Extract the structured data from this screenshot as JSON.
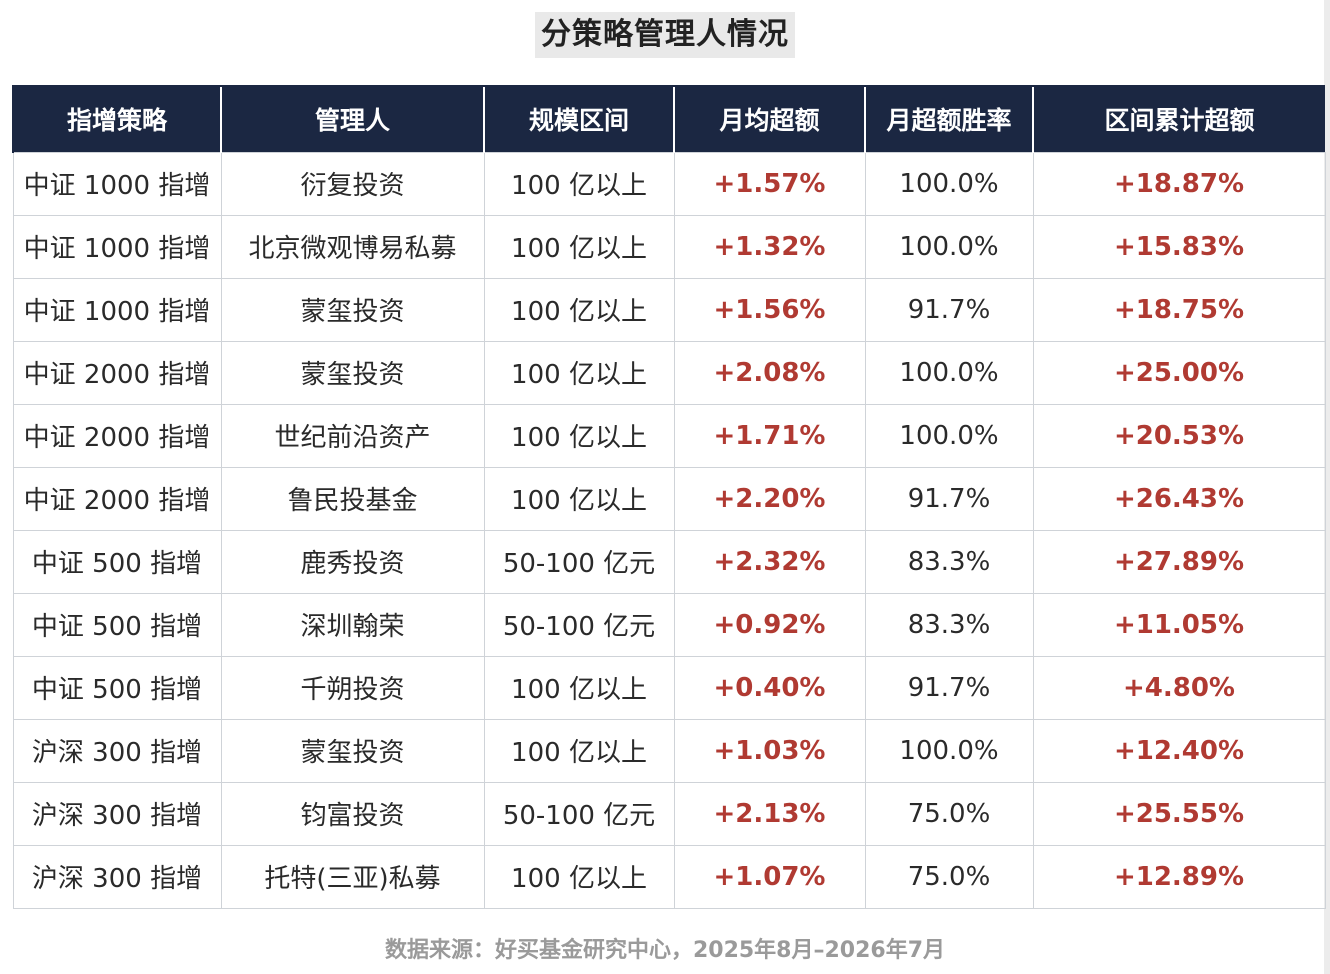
{
  "title": "分策略管理人情况",
  "headers": [
    "指增策略",
    "管理人",
    "规模区间",
    "月均超额",
    "月超额胜率",
    "区间累计超额"
  ],
  "rows": [
    {
      "strategy": "中证 1000 指增",
      "manager": "衍复投资",
      "scale": "100 亿以上",
      "monthly_excess": "+1.57%",
      "win_rate": "100.0%",
      "cum_excess": "+18.87%"
    },
    {
      "strategy": "中证 1000 指增",
      "manager": "北京微观博易私募",
      "scale": "100 亿以上",
      "monthly_excess": "+1.32%",
      "win_rate": "100.0%",
      "cum_excess": "+15.83%"
    },
    {
      "strategy": "中证 1000 指增",
      "manager": "蒙玺投资",
      "scale": "100 亿以上",
      "monthly_excess": "+1.56%",
      "win_rate": "91.7%",
      "cum_excess": "+18.75%"
    },
    {
      "strategy": "中证 2000 指增",
      "manager": "蒙玺投资",
      "scale": "100 亿以上",
      "monthly_excess": "+2.08%",
      "win_rate": "100.0%",
      "cum_excess": "+25.00%"
    },
    {
      "strategy": "中证 2000 指增",
      "manager": "世纪前沿资产",
      "scale": "100 亿以上",
      "monthly_excess": "+1.71%",
      "win_rate": "100.0%",
      "cum_excess": "+20.53%"
    },
    {
      "strategy": "中证 2000 指增",
      "manager": "鲁民投基金",
      "scale": "100 亿以上",
      "monthly_excess": "+2.20%",
      "win_rate": "91.7%",
      "cum_excess": "+26.43%"
    },
    {
      "strategy": "中证 500 指增",
      "manager": "鹿秀投资",
      "scale": "50-100 亿元",
      "monthly_excess": "+2.32%",
      "win_rate": "83.3%",
      "cum_excess": "+27.89%"
    },
    {
      "strategy": "中证 500 指增",
      "manager": "深圳翰荣",
      "scale": "50-100 亿元",
      "monthly_excess": "+0.92%",
      "win_rate": "83.3%",
      "cum_excess": "+11.05%"
    },
    {
      "strategy": "中证 500 指增",
      "manager": "千朔投资",
      "scale": "100 亿以上",
      "monthly_excess": "+0.40%",
      "win_rate": "91.7%",
      "cum_excess": "+4.80%"
    },
    {
      "strategy": "沪深 300 指增",
      "manager": "蒙玺投资",
      "scale": "100 亿以上",
      "monthly_excess": "+1.03%",
      "win_rate": "100.0%",
      "cum_excess": "+12.40%"
    },
    {
      "strategy": "沪深 300 指增",
      "manager": "钧富投资",
      "scale": "50-100 亿元",
      "monthly_excess": "+2.13%",
      "win_rate": "75.0%",
      "cum_excess": "+25.55%"
    },
    {
      "strategy": "沪深 300 指增",
      "manager": "托特(三亚)私募",
      "scale": "100 亿以上",
      "monthly_excess": "+1.07%",
      "win_rate": "75.0%",
      "cum_excess": "+12.89%"
    }
  ],
  "footer": "数据来源：好买基金研究中心，2025年8月–2026年7月",
  "colors": {
    "header_bg": "#1b2742",
    "header_text": "#ffffff",
    "positive": "#b03a32",
    "border": "#cfd3d8"
  }
}
